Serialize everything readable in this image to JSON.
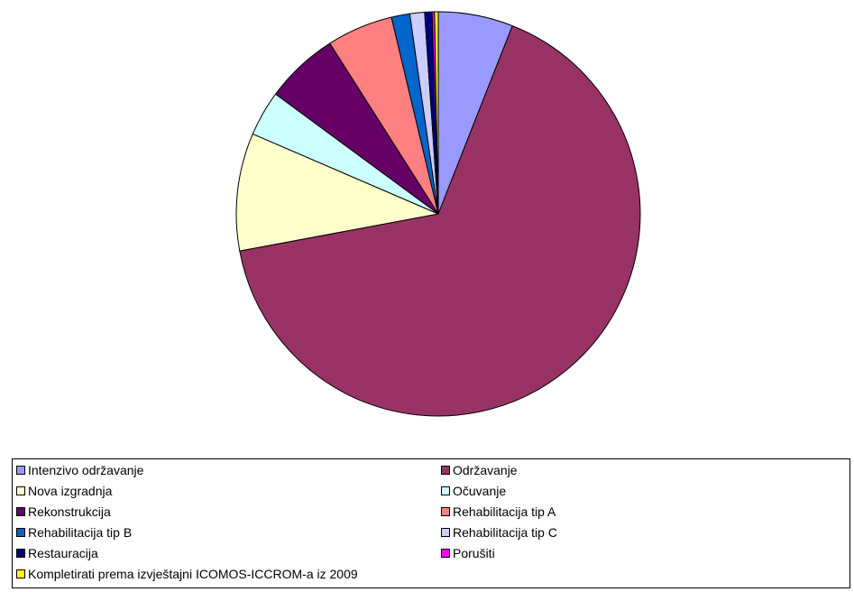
{
  "chart_data": {
    "type": "pie",
    "title": "",
    "categories": [
      "Intenzivo održavanje",
      "Održavanje",
      "Nova izgradnja",
      "Očuvanje",
      "Rekonstrukcija",
      "Rehabilitacija tip A",
      "Rehabilitacija tip B",
      "Rehabilitacija tip C",
      "Restauracija",
      "Porušiti",
      "Kompletirati prema izvještajni ICOMOS-ICCROM-a iz 2009"
    ],
    "values": [
      6.1,
      67.4,
      9.6,
      3.7,
      6.0,
      5.4,
      1.5,
      1.2,
      0.6,
      0.2,
      0.3
    ],
    "unit": "%",
    "colors": [
      "#9999ff",
      "#993366",
      "#ffffcc",
      "#ccffff",
      "#660066",
      "#ff8080",
      "#0066cc",
      "#ccccff",
      "#000080",
      "#ff00ff",
      "#ffff00"
    ],
    "legend_position": "bottom",
    "start_angle_deg": 0,
    "direction": "clockwise"
  }
}
